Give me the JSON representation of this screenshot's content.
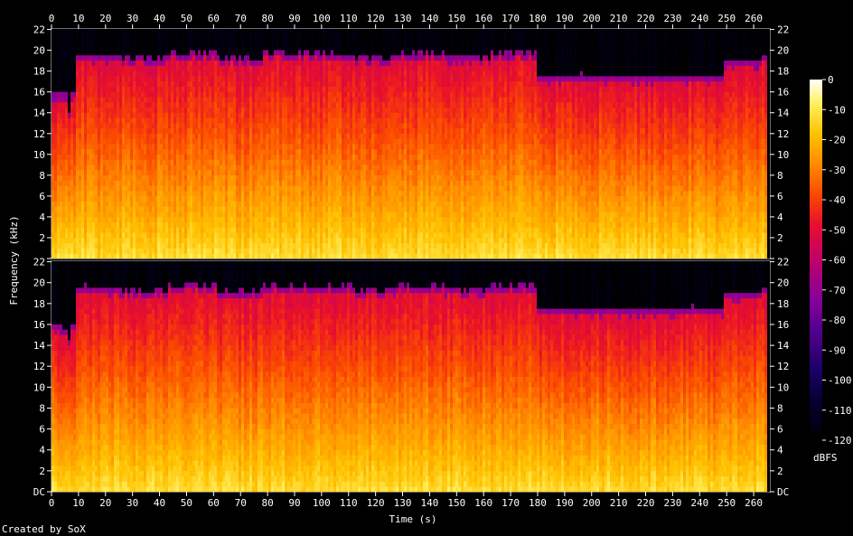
{
  "chart_data": {
    "type": "heatmap",
    "subtype": "spectrogram",
    "channels": 2,
    "x_axis": {
      "label": "Time (s)",
      "unit": "s",
      "range": [
        0,
        266
      ],
      "ticks": [
        0,
        10,
        20,
        30,
        40,
        50,
        60,
        70,
        80,
        90,
        100,
        110,
        120,
        130,
        140,
        150,
        160,
        170,
        180,
        190,
        200,
        210,
        220,
        230,
        240,
        250,
        260
      ],
      "tick_labels": [
        "0",
        "10",
        "20",
        "30",
        "40",
        "50",
        "60",
        "70",
        "80",
        "90",
        "100",
        "110",
        "120",
        "130",
        "140",
        "150",
        "160",
        "170",
        "180",
        "190",
        "200",
        "210",
        "220",
        "230",
        "240",
        "250",
        "260"
      ]
    },
    "y_axis": {
      "label": "Frequency (kHz)",
      "unit": "kHz",
      "range": [
        0,
        22.05
      ],
      "ticks": [
        0,
        2,
        4,
        6,
        8,
        10,
        12,
        14,
        16,
        18,
        20,
        22
      ],
      "tick_labels_top": [
        "",
        "2",
        "4",
        "6",
        "8",
        "10",
        "12",
        "14",
        "16",
        "18",
        "20",
        "22"
      ],
      "tick_labels_bottom": [
        "DC",
        "2",
        "4",
        "6",
        "8",
        "10",
        "12",
        "14",
        "16",
        "18",
        "20",
        "22"
      ]
    },
    "colorbar": {
      "label": "dBFS",
      "range": [
        -120,
        0
      ],
      "ticks": [
        0,
        -10,
        -20,
        -30,
        -40,
        -50,
        -60,
        -70,
        -80,
        -90,
        -100,
        -110,
        -120
      ],
      "tick_labels": [
        "0",
        "-10",
        "-20",
        "-30",
        "-40",
        "-50",
        "-60",
        "-70",
        "-80",
        "-90",
        "-100",
        "-110",
        "-120"
      ],
      "stops": [
        {
          "db": -120,
          "color": "#000000"
        },
        {
          "db": -108,
          "color": "#04002e"
        },
        {
          "db": -96,
          "color": "#1e0066"
        },
        {
          "db": -84,
          "color": "#50008f"
        },
        {
          "db": -72,
          "color": "#8a0098"
        },
        {
          "db": -60,
          "color": "#c0006a"
        },
        {
          "db": -48,
          "color": "#e8102a"
        },
        {
          "db": -38,
          "color": "#fb4a00"
        },
        {
          "db": -28,
          "color": "#ff8c00"
        },
        {
          "db": -18,
          "color": "#ffc200"
        },
        {
          "db": -8,
          "color": "#fff060"
        },
        {
          "db": 0,
          "color": "#ffffff"
        }
      ]
    },
    "segments": [
      {
        "t0": 0,
        "t1": 2,
        "cutoff_khz": 16.2
      },
      {
        "t0": 2,
        "t1": 6,
        "cutoff_khz": 16.0
      },
      {
        "t0": 6,
        "t1": 7,
        "cutoff_khz": 14.5
      },
      {
        "t0": 7,
        "t1": 8.5,
        "cutoff_khz": 16.2
      },
      {
        "t0": 8.5,
        "t1": 26,
        "cutoff_khz": 19.8
      },
      {
        "t0": 26,
        "t1": 43,
        "cutoff_khz": 19.5
      },
      {
        "t0": 43,
        "t1": 61,
        "cutoff_khz": 20.0
      },
      {
        "t0": 61,
        "t1": 78,
        "cutoff_khz": 19.5
      },
      {
        "t0": 78,
        "t1": 112,
        "cutoff_khz": 20.0
      },
      {
        "t0": 112,
        "t1": 128,
        "cutoff_khz": 19.7
      },
      {
        "t0": 128,
        "t1": 145,
        "cutoff_khz": 20.0
      },
      {
        "t0": 145,
        "t1": 162,
        "cutoff_khz": 19.7
      },
      {
        "t0": 162,
        "t1": 179,
        "cutoff_khz": 20.0
      },
      {
        "t0": 179,
        "t1": 248,
        "cutoff_khz": 17.8
      },
      {
        "t0": 248,
        "t1": 262,
        "cutoff_khz": 19.3
      },
      {
        "t0": 262,
        "t1": 266,
        "cutoff_khz": 19.8
      }
    ],
    "silent_gap_s": 265.3
  },
  "credit": "Created by SoX"
}
